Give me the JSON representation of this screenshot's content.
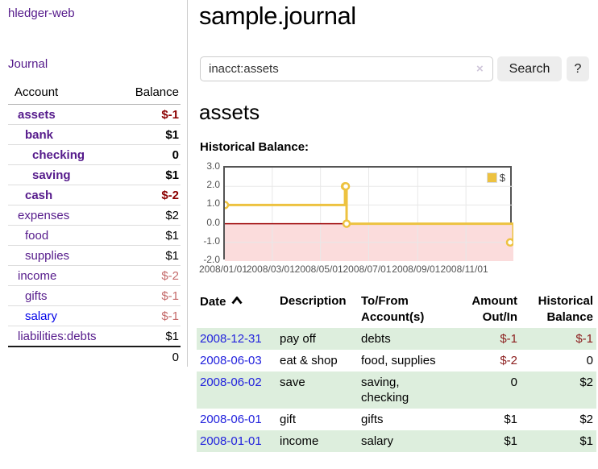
{
  "app_title": "hledger-web",
  "sidebar": {
    "journal_link": "Journal",
    "accounts": {
      "header_account": "Account",
      "header_balance": "Balance",
      "rows": [
        {
          "name": "assets",
          "balance": "$-1"
        },
        {
          "name": "bank",
          "balance": "$1"
        },
        {
          "name": "checking",
          "balance": "0"
        },
        {
          "name": "saving",
          "balance": "$1"
        },
        {
          "name": "cash",
          "balance": "$-2"
        },
        {
          "name": "expenses",
          "balance": "$2"
        },
        {
          "name": "food",
          "balance": "$1"
        },
        {
          "name": "supplies",
          "balance": "$1"
        },
        {
          "name": "income",
          "balance": "$-2"
        },
        {
          "name": "gifts",
          "balance": "$-1"
        },
        {
          "name": "salary",
          "balance": "$-1"
        },
        {
          "name": "liabilities:debts",
          "balance": "$1"
        }
      ],
      "total": "0"
    }
  },
  "main": {
    "title": "sample.journal",
    "search": {
      "value": "inacct:assets",
      "clear_label": "×",
      "search_button": "Search",
      "help_button": "?"
    },
    "account_heading": "assets",
    "chart_title": "Historical Balance:"
  },
  "chart_data": {
    "type": "line",
    "step": true,
    "title": "Historical Balance",
    "series": [
      {
        "name": "$",
        "color": "#edc240",
        "points": [
          [
            "2008-01-01",
            1
          ],
          [
            "2008-06-01",
            2
          ],
          [
            "2008-06-02",
            2
          ],
          [
            "2008-06-03",
            0
          ],
          [
            "2008-12-31",
            -1
          ]
        ]
      }
    ],
    "x_range": [
      "2008-01-01",
      "2008-12-31"
    ],
    "x_tick_dates": [
      "2008-01-01",
      "2008-03-01",
      "2008-05-01",
      "2008-07-01",
      "2008-09-01",
      "2008-11-01"
    ],
    "x_tick_labels": [
      "2008/01/01",
      "2008/03/01",
      "2008/05/01",
      "2008/07/01",
      "2008/09/01",
      "2008/11/01"
    ],
    "y_ticks": [
      "3.0",
      "2.0",
      "1.0",
      "0.0",
      "-1.0",
      "-2.0"
    ],
    "ylim": [
      -2,
      3
    ],
    "grid": true,
    "legend": {
      "label": "$",
      "position": "top-right"
    },
    "grid_color": "#e8e8e8",
    "negative_region_color": "#fbdcdc",
    "zero_line_color": "#9e0508"
  },
  "register": {
    "headers": {
      "date": "Date",
      "description": "Description",
      "tofrom": "To/From Account(s)",
      "amount": "Amount Out/In",
      "balance": "Historical Balance"
    },
    "rows": [
      {
        "date": "2008-12-31",
        "description": "pay off",
        "accounts": "debts",
        "amount": "$-1",
        "balance": "$-1"
      },
      {
        "date": "2008-06-03",
        "description": "eat & shop",
        "accounts": "food, supplies",
        "amount": "$-2",
        "balance": "0"
      },
      {
        "date": "2008-06-02",
        "description": "save",
        "accounts": "saving, checking",
        "amount": "0",
        "balance": "$2"
      },
      {
        "date": "2008-06-01",
        "description": "gift",
        "accounts": "gifts",
        "amount": "$1",
        "balance": "$2"
      },
      {
        "date": "2008-01-01",
        "description": "income",
        "accounts": "salary",
        "amount": "$1",
        "balance": "$1"
      }
    ]
  }
}
